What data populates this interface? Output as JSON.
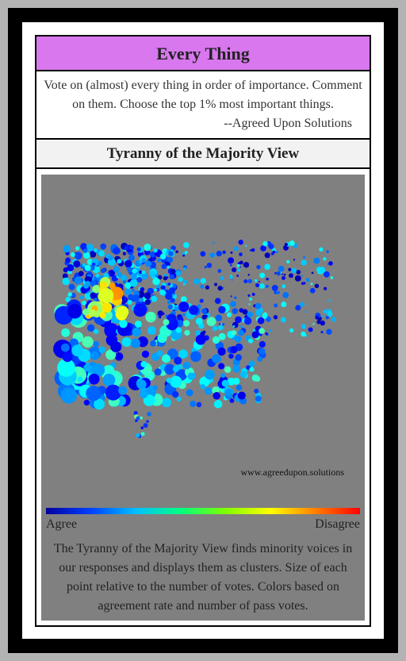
{
  "header": {
    "title": "Every Thing"
  },
  "description": {
    "text": "Vote on (almost) every thing in order of importance. Comment on them. Choose the top 1% most important things.",
    "attribution": "--Agreed Upon Solutions"
  },
  "view": {
    "title": "Tyranny of the Majority View",
    "watermark": "www.agreedupon.solutions",
    "legend": {
      "low": "Agree",
      "high": "Disagree"
    },
    "caption": "The Tyranny of the Majority View finds minority voices in our responses and displays them as clusters. Size of each point relative to the number of votes. Colors based on agreement rate and number of pass votes."
  }
}
